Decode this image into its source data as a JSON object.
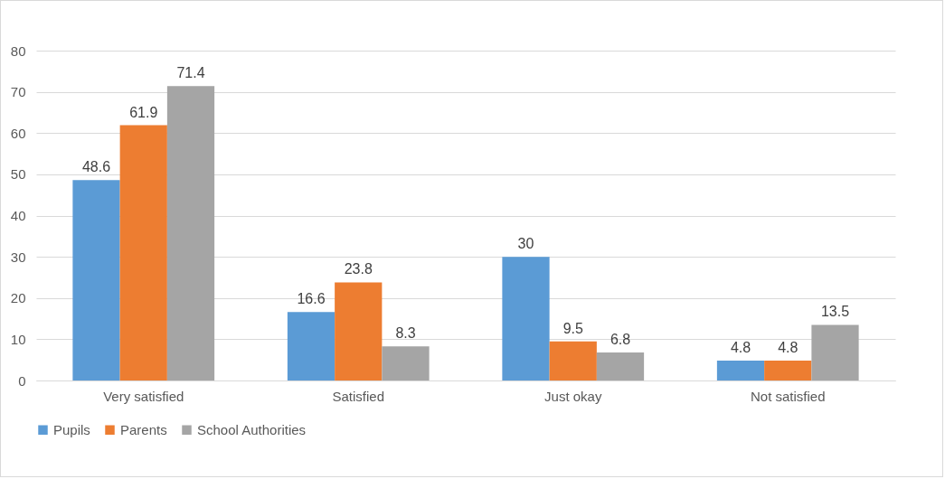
{
  "chart_data": {
    "type": "bar",
    "categories": [
      "Very satisfied",
      "Satisfied",
      "Just okay",
      "Not satisfied"
    ],
    "series": [
      {
        "name": "Pupils",
        "color": "#5b9bd5",
        "values": [
          48.6,
          16.6,
          30,
          4.8
        ]
      },
      {
        "name": "Parents",
        "color": "#ed7d31",
        "values": [
          61.9,
          23.8,
          9.5,
          4.8
        ]
      },
      {
        "name": "School Authorities",
        "color": "#a5a5a5",
        "values": [
          71.4,
          8.3,
          6.8,
          13.5
        ]
      }
    ],
    "ylim": [
      0,
      80
    ],
    "yticks": [
      0,
      10,
      20,
      30,
      40,
      50,
      60,
      70,
      80
    ],
    "grid": "y",
    "legend": "bottom",
    "data_labels": true
  }
}
